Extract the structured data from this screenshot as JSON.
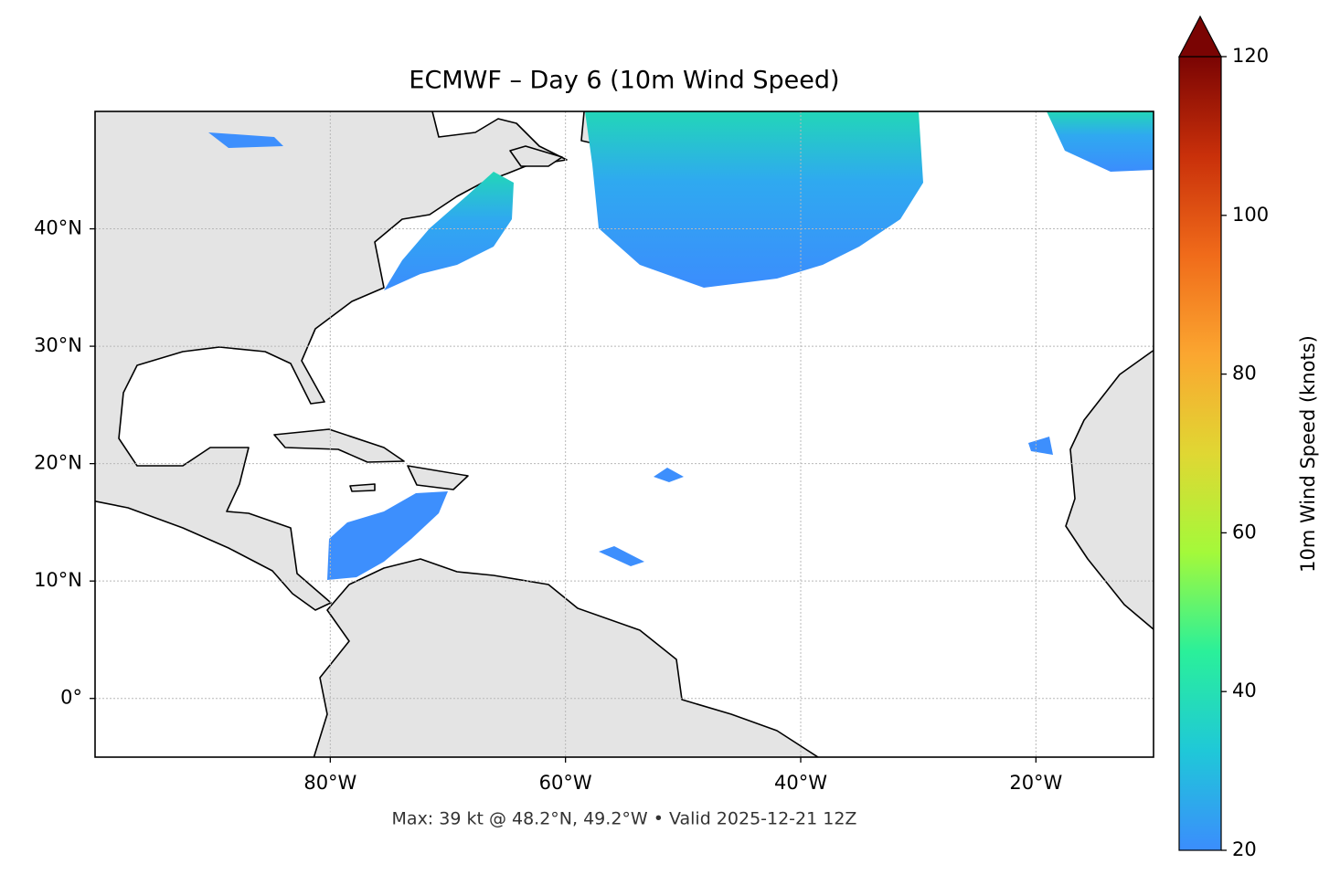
{
  "chart_data": {
    "type": "map",
    "title": "ECMWF – Day 6 (10m Wind Speed)",
    "footer": "Max: 39 kt @ 48.2°N, 49.2°W • Valid 2025-12-21 12Z",
    "xlim": [
      -100,
      -10
    ],
    "ylim": [
      -5,
      50
    ],
    "xticks": [
      {
        "value": -80,
        "label": "80°W"
      },
      {
        "value": -60,
        "label": "60°W"
      },
      {
        "value": -40,
        "label": "40°W"
      },
      {
        "value": -20,
        "label": "20°W"
      }
    ],
    "yticks": [
      {
        "value": 0,
        "label": "0°"
      },
      {
        "value": 10,
        "label": "10°N"
      },
      {
        "value": 20,
        "label": "20°N"
      },
      {
        "value": 30,
        "label": "30°N"
      },
      {
        "value": 40,
        "label": "40°N"
      }
    ],
    "grid": true,
    "colorbar": {
      "label": "10m Wind Speed (knots)",
      "lim": [
        20,
        120
      ],
      "ticks": [
        20,
        40,
        60,
        80,
        100,
        120
      ],
      "colors": [
        "#3b8dfd",
        "#1fc8d8",
        "#2af09a",
        "#a4f93a",
        "#e0d733",
        "#fba630",
        "#f06b1a",
        "#c9300a",
        "#7a0403"
      ],
      "extend": "max"
    }
  }
}
